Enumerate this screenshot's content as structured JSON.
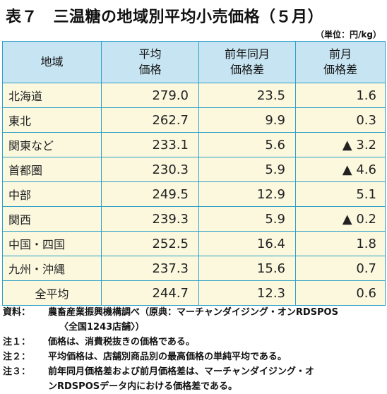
{
  "title": "表７　三温糖の地域別平均小売価格（５月）",
  "unit": "（単位：円/kg）",
  "headers": {
    "region": "地域",
    "avg_line1": "平均",
    "avg_line2": "価格",
    "yoy_line1": "前年同月",
    "yoy_line2": "価格差",
    "mom_line1": "前月",
    "mom_line2": "価格差"
  },
  "rows": [
    {
      "region": "北海道",
      "avg": "279.0",
      "yoy": "23.5",
      "mom": "1.6"
    },
    {
      "region": "東北",
      "avg": "262.7",
      "yoy": "9.9",
      "mom": "0.3"
    },
    {
      "region": "関東など",
      "avg": "233.1",
      "yoy": "5.6",
      "mom": "▲ 3.2"
    },
    {
      "region": "首都圏",
      "avg": "230.3",
      "yoy": "5.9",
      "mom": "▲ 4.6"
    },
    {
      "region": "中部",
      "avg": "249.5",
      "yoy": "12.9",
      "mom": "5.1"
    },
    {
      "region": "関西",
      "avg": "239.3",
      "yoy": "5.9",
      "mom": "▲ 0.2"
    },
    {
      "region": "中国・四国",
      "avg": "252.5",
      "yoy": "16.4",
      "mom": "1.8"
    },
    {
      "region": "九州・沖縄",
      "avg": "237.3",
      "yoy": "15.6",
      "mom": "0.7"
    },
    {
      "region": "全平均",
      "avg": "244.7",
      "yoy": "12.3",
      "mom": "0.6"
    }
  ],
  "notes": {
    "source_label": "資料：",
    "source_text": "農畜産業振興機構調べ（原典：マーチャンダイジング・オンRDSPOS",
    "source_text2": "〈全国1243店舗〉）",
    "note1_label": "注１：",
    "note1_text": "価格は、消費税抜きの価格である。",
    "note2_label": "注２：",
    "note2_text": "平均価格は、店舗別商品別の最高価格の単純平均である。",
    "note3_label": "注３：",
    "note3_text": "前年同月価格差および前月価格差は、マーチャンダイジング・オ",
    "note3_text2": "ンRDSPOSデータ内における価格差である。"
  },
  "colors": {
    "header_bg": "#c7e4f2",
    "cell_bg": "#fbf8de",
    "border": "#2a9fc8"
  }
}
